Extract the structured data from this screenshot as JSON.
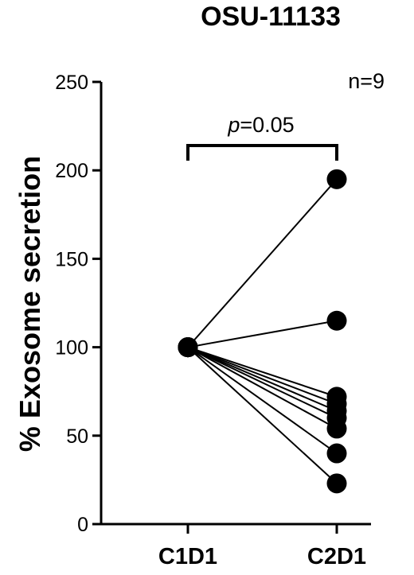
{
  "chart_data": {
    "type": "scatter",
    "title": "OSU-11133",
    "ylabel": "% Exosome secretion",
    "xlabel": "",
    "categories": [
      "C1D1",
      "C2D1"
    ],
    "ylim": [
      0,
      250
    ],
    "yticks": [
      0,
      50,
      100,
      150,
      200,
      250
    ],
    "grid": false,
    "legend": "none",
    "annotations": {
      "n_label": "n=9",
      "p_label_prefix": "p",
      "p_label_value": "=0.05"
    },
    "series": [
      {
        "values": [
          100,
          195
        ]
      },
      {
        "values": [
          100,
          115
        ]
      },
      {
        "values": [
          100,
          72
        ]
      },
      {
        "values": [
          100,
          68
        ]
      },
      {
        "values": [
          100,
          64
        ]
      },
      {
        "values": [
          100,
          60
        ]
      },
      {
        "values": [
          100,
          54
        ]
      },
      {
        "values": [
          100,
          40
        ]
      },
      {
        "values": [
          100,
          23
        ]
      }
    ],
    "marker_color": "#000000"
  }
}
